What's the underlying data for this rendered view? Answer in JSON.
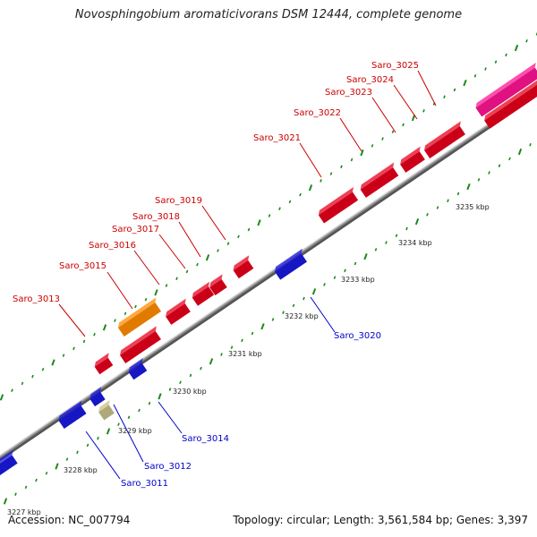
{
  "title": "Novosphingobium aromaticivorans DSM 12444, complete genome",
  "accession": "Accession: NC_007794",
  "summary": "Topology: circular; Length: 3,561,584 bp; Genes: 3,397",
  "colors": {
    "backbone": "#8a8a8a",
    "tick": "#1a8a1a",
    "forward_gene": "#e8001c",
    "reverse_gene": "#1a1ae0",
    "rna_gene": "#ff8c00",
    "misc_feature": "#c8c08a",
    "highlight": "#ff1493",
    "forward_label": "#cc0000",
    "reverse_label": "#0000cc",
    "scale_label": "#222222"
  },
  "scale_labels": [
    "3227 kbp",
    "3228 kbp",
    "3229 kbp",
    "3230 kbp",
    "3231 kbp",
    "3232 kbp",
    "3233 kbp",
    "3234 kbp",
    "3235 kbp"
  ],
  "forward_labels": [
    "Saro_3013",
    "Saro_3015",
    "Saro_3016",
    "Saro_3017",
    "Saro_3018",
    "Saro_3019",
    "Saro_3021",
    "Saro_3022",
    "Saro_3023",
    "Saro_3024",
    "Saro_3025"
  ],
  "reverse_labels": [
    "Saro_3011",
    "Saro_3012",
    "Saro_3014",
    "Saro_3020"
  ]
}
